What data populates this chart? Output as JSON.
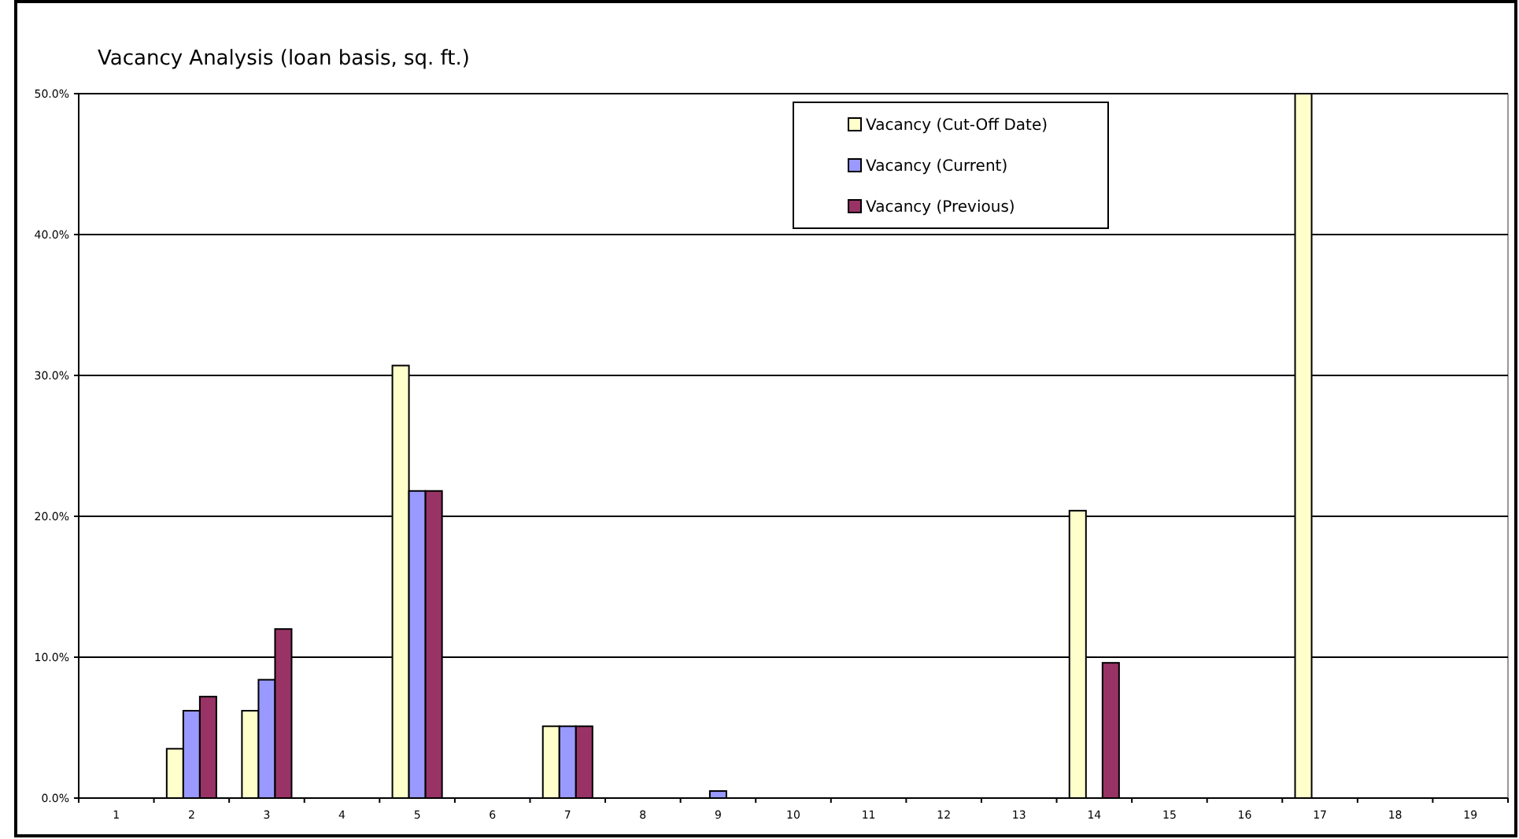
{
  "chart_data": {
    "type": "bar",
    "title": "Vacancy Analysis (loan basis, sq. ft.)",
    "categories": [
      "1",
      "2",
      "3",
      "4",
      "5",
      "6",
      "7",
      "8",
      "9",
      "10",
      "11",
      "12",
      "13",
      "14",
      "15",
      "16",
      "17",
      "18",
      "19"
    ],
    "series": [
      {
        "name": "Vacancy (Cut-Off Date)",
        "color": "#ffffcc",
        "values": [
          null,
          3.5,
          6.2,
          null,
          30.7,
          null,
          5.1,
          null,
          null,
          null,
          null,
          null,
          null,
          20.4,
          null,
          null,
          50,
          null,
          null
        ]
      },
      {
        "name": "Vacancy (Current)",
        "color": "#9999ff",
        "values": [
          null,
          6.2,
          8.4,
          null,
          21.8,
          null,
          5.1,
          null,
          0.5,
          null,
          null,
          null,
          null,
          null,
          null,
          null,
          null,
          null,
          null
        ]
      },
      {
        "name": "Vacancy (Previous)",
        "color": "#993366",
        "values": [
          null,
          7.2,
          12.0,
          null,
          21.8,
          null,
          5.1,
          null,
          null,
          null,
          null,
          null,
          null,
          9.6,
          null,
          null,
          null,
          null,
          null
        ]
      }
    ],
    "ylim": [
      0,
      50
    ],
    "yticks": [
      {
        "value": 0,
        "label": "0.0%"
      },
      {
        "value": 10,
        "label": "10.0%"
      },
      {
        "value": 20,
        "label": "20.0%"
      },
      {
        "value": 30,
        "label": "30.0%"
      },
      {
        "value": 40,
        "label": "40.0%"
      },
      {
        "value": 50,
        "label": "50.0%"
      }
    ],
    "grid": "y",
    "legend": "top right"
  }
}
